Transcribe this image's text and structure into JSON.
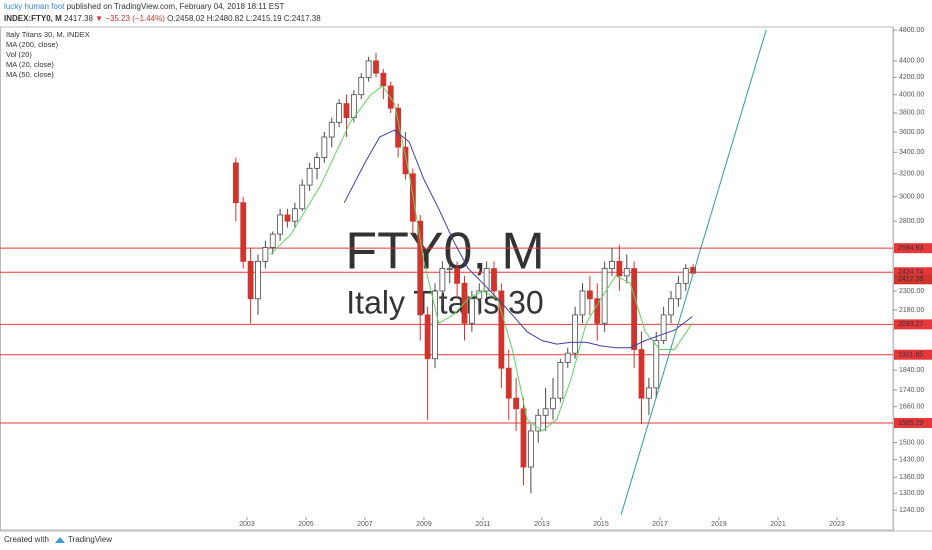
{
  "header": {
    "author": "lucky human foot",
    "published": "published on TradingView.com, February 04, 2018 18:11 EST",
    "symbol": "INDEX:FTY0, M",
    "last": "2417.38",
    "change": "▼ −35.23 (−1.44%)",
    "ohlc": [
      "O:2458.02",
      "H:2480.82",
      "L:2415.19",
      "C:2417.38"
    ]
  },
  "footer": {
    "created": "Created with",
    "brand": "TradingView"
  },
  "chart_data": {
    "type": "candlestick",
    "title": "Italy Titans 30, M, INDEX",
    "watermark": [
      "FTY0, M",
      "Italy Titans 30"
    ],
    "indicators": [
      "MA (200, close)",
      "Vol (20)"
    ],
    "log_scale": true,
    "grid": false,
    "up_color": "#4a4a4a",
    "down_color": "#d0342c",
    "level_color": "#e8373a",
    "xlim": [
      1994.63,
      2024.9
    ],
    "xticks": [
      2003,
      2005,
      2007,
      2009,
      2011,
      2013,
      2015,
      2017,
      2019,
      2021,
      2023
    ],
    "ylim": [
      1223,
      4841
    ],
    "yticks": [
      {
        "value": 1240,
        "label": "1240.00"
      },
      {
        "value": 1300,
        "label": "1300.00"
      },
      {
        "value": 1360,
        "label": "1360.00"
      },
      {
        "value": 1430,
        "label": "1430.00"
      },
      {
        "value": 1500,
        "label": "1500.00"
      },
      {
        "value": 1660,
        "label": "1660.00"
      },
      {
        "value": 1740,
        "label": "1740.00"
      },
      {
        "value": 1840,
        "label": "1840.00"
      },
      {
        "value": 2180,
        "label": "2180.00"
      },
      {
        "value": 2300,
        "label": "2300.00"
      },
      {
        "value": 2800,
        "label": "2800.00"
      },
      {
        "value": 3000,
        "label": "3000.00"
      },
      {
        "value": 3200,
        "label": "3200.00"
      },
      {
        "value": 3400,
        "label": "3400.00"
      },
      {
        "value": 3600,
        "label": "3600.00"
      },
      {
        "value": 3800,
        "label": "3800.00"
      },
      {
        "value": 4000,
        "label": "4000.00"
      },
      {
        "value": 4200,
        "label": "4200.00"
      },
      {
        "value": 4400,
        "label": "4400.00"
      },
      {
        "value": 4800,
        "label": "4800.00"
      }
    ],
    "x": [
      2002.625,
      2002.875,
      2003.125,
      2003.375,
      2003.625,
      2003.875,
      2004.125,
      2004.375,
      2004.625,
      2004.875,
      2005.125,
      2005.375,
      2005.625,
      2005.875,
      2006.125,
      2006.375,
      2006.625,
      2006.875,
      2007.125,
      2007.375,
      2007.625,
      2007.875,
      2008.125,
      2008.375,
      2008.625,
      2008.875,
      2009.125,
      2009.375,
      2009.625,
      2009.875,
      2010.125,
      2010.375,
      2010.625,
      2010.875,
      2011.125,
      2011.375,
      2011.625,
      2011.875,
      2012.125,
      2012.375,
      2012.625,
      2012.875,
      2013.125,
      2013.375,
      2013.625,
      2013.875,
      2014.125,
      2014.375,
      2014.625,
      2014.875,
      2015.125,
      2015.375,
      2015.625,
      2015.875,
      2016.125,
      2016.375,
      2016.625,
      2016.875,
      2017.125,
      2017.375,
      2017.625,
      2017.875,
      2018.125
    ],
    "open": [
      3300,
      2950,
      2500,
      2250,
      2500,
      2600,
      2700,
      2850,
      2800,
      2900,
      3100,
      3250,
      3350,
      3550,
      3700,
      3900,
      3750,
      4000,
      4200,
      4400,
      4250,
      4100,
      3850,
      3450,
      3200,
      2800,
      2150,
      1900,
      2300,
      2450,
      2450,
      2350,
      2100,
      2250,
      2300,
      2450,
      2300,
      1850,
      1700,
      1650,
      1400,
      1550,
      1620,
      1650,
      1700,
      1880,
      1930,
      2150,
      2300,
      2250,
      2100,
      2450,
      2500,
      2400,
      2450,
      1950,
      1700,
      1750,
      2000,
      2150,
      2250,
      2350,
      2458.02
    ],
    "high": [
      3350,
      3000,
      2600,
      2550,
      2650,
      2720,
      2900,
      2900,
      2950,
      3150,
      3300,
      3400,
      3600,
      3750,
      3950,
      4000,
      4050,
      4250,
      4450,
      4500,
      4300,
      4150,
      3900,
      3600,
      3250,
      2850,
      2200,
      2350,
      2500,
      2550,
      2500,
      2400,
      2300,
      2350,
      2500,
      2500,
      2350,
      1950,
      1800,
      1700,
      1580,
      1650,
      1750,
      1800,
      1900,
      1960,
      2200,
      2350,
      2400,
      2350,
      2500,
      2600,
      2620,
      2550,
      2500,
      2050,
      1800,
      2050,
      2200,
      2300,
      2400,
      2480,
      2480.82
    ],
    "low": [
      2800,
      2450,
      2100,
      2150,
      2450,
      2550,
      2650,
      2750,
      2750,
      2880,
      3050,
      3150,
      3300,
      3450,
      3650,
      3550,
      3700,
      3950,
      4150,
      4200,
      3950,
      3800,
      3350,
      3150,
      2700,
      2000,
      1600,
      1850,
      2200,
      2350,
      2250,
      2000,
      2050,
      2150,
      2250,
      2250,
      1750,
      1600,
      1550,
      1330,
      1300,
      1500,
      1550,
      1600,
      1680,
      1850,
      1900,
      2100,
      2150,
      2000,
      2050,
      2400,
      2300,
      2350,
      1850,
      1580,
      1620,
      1700,
      1980,
      2100,
      2200,
      2300,
      2415.19
    ],
    "close": [
      2950,
      2500,
      2250,
      2500,
      2600,
      2700,
      2850,
      2800,
      2900,
      3100,
      3250,
      3350,
      3550,
      3700,
      3900,
      3750,
      4000,
      4200,
      4400,
      4250,
      4100,
      3850,
      3450,
      3200,
      2800,
      2150,
      1900,
      2300,
      2450,
      2450,
      2350,
      2100,
      2250,
      2300,
      2450,
      2300,
      1850,
      1700,
      1650,
      1400,
      1550,
      1620,
      1650,
      1700,
      1880,
      1930,
      2150,
      2300,
      2250,
      2100,
      2450,
      2500,
      2400,
      2450,
      1950,
      1700,
      1750,
      2000,
      2150,
      2250,
      2350,
      2450,
      2417.38
    ],
    "series": [
      {
        "name": "MA (20, close)",
        "color": "#5fd35f",
        "x": [
          2003.8,
          2004.5,
          2005.5,
          2006.5,
          2007.2,
          2007.6,
          2008.0,
          2008.5,
          2009.0,
          2009.5,
          2010.0,
          2010.5,
          2011.0,
          2011.5,
          2012.0,
          2012.5,
          2013.0,
          2013.5,
          2014.0,
          2014.5,
          2015.0,
          2015.5,
          2016.0,
          2016.5,
          2017.0,
          2017.5,
          2017.7,
          2018.1
        ],
        "values": [
          2550,
          2700,
          3100,
          3700,
          4000,
          4100,
          3900,
          3200,
          2500,
          2100,
          2150,
          2250,
          2300,
          2250,
          1950,
          1600,
          1550,
          1600,
          1800,
          2100,
          2250,
          2400,
          2350,
          2050,
          1950,
          1950,
          2000,
          2100
        ]
      },
      {
        "name": "MA (50, close)",
        "color": "#3f3fa5",
        "x": [
          2006.3,
          2007.0,
          2007.5,
          2008.0,
          2008.5,
          2009.0,
          2009.5,
          2010.0,
          2010.5,
          2011.0,
          2011.5,
          2012.0,
          2012.5,
          2013.0,
          2013.5,
          2014.0,
          2014.5,
          2015.0,
          2015.5,
          2016.0,
          2016.5,
          2017.0,
          2017.5,
          2018.1
        ],
        "values": [
          2950,
          3300,
          3550,
          3620,
          3500,
          3150,
          2900,
          2650,
          2450,
          2350,
          2250,
          2150,
          2050,
          2000,
          1980,
          1990,
          1990,
          1970,
          1960,
          1960,
          2000,
          2030,
          2060,
          2140
        ]
      }
    ],
    "trendline": {
      "color": "#2e9e8f",
      "x": [
        2015.68,
        2020.6
      ],
      "values": [
        1223,
        4800
      ]
    },
    "levels": [
      2594.93,
      2424.74,
      2093.27,
      1921.65,
      1585.29
    ],
    "price_label": 2417.38
  }
}
